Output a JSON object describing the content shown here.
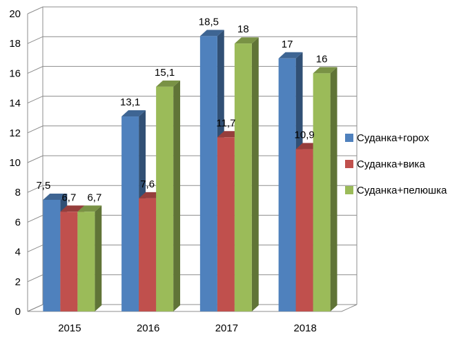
{
  "chart_data": {
    "type": "bar",
    "categories": [
      "2015",
      "2016",
      "2017",
      "2018"
    ],
    "series": [
      {
        "name": "Суданка+горох",
        "values": [
          7.5,
          13.1,
          18.5,
          17
        ],
        "labels": [
          "7,5",
          "13,1",
          "18,5",
          "17"
        ],
        "color": "#4f81bd"
      },
      {
        "name": "Суданка+вика",
        "values": [
          6.7,
          7.6,
          11.7,
          10.9
        ],
        "labels": [
          "6,7",
          "7,6",
          "11,7",
          "10,9"
        ],
        "color": "#c0504d"
      },
      {
        "name": "Суданка+пелюшка",
        "values": [
          6.7,
          15.1,
          18,
          16
        ],
        "labels": [
          "6,7",
          "15,1",
          "18",
          "16"
        ],
        "color": "#9bbb59"
      }
    ],
    "ylim": [
      0,
      20
    ],
    "yticks": [
      "0",
      "2",
      "4",
      "6",
      "8",
      "10",
      "12",
      "14",
      "16",
      "18",
      "20"
    ],
    "grid": true,
    "legend": "right",
    "title": "",
    "xlabel": "",
    "ylabel": ""
  }
}
